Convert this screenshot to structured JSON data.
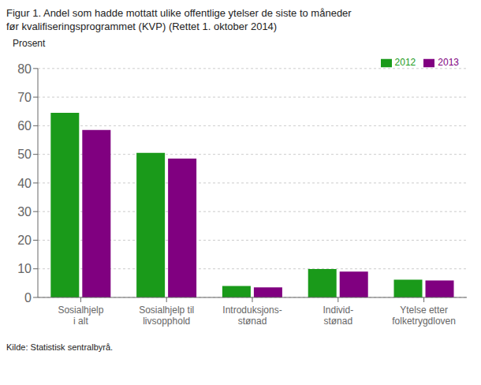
{
  "chart_data": {
    "type": "bar",
    "title": "Figur 1. Andel som hadde mottatt ulike offentlige ytelser de siste to måneder",
    "subtitle": "før kvalifiseringsprogrammet (KVP) (Rettet 1. oktober 2014)",
    "ylabel": "Prosent",
    "annotations": [
      "Kilde: Statistisk sentralbyrå."
    ],
    "categories": [
      "Sosialhjelp\ni alt",
      "Sosialhjelp til\nlivsopphold",
      "Introduksjons-\nstønad",
      "Individ-\nstønad",
      "Ytelse etter\nfolketrygdloven"
    ],
    "series": [
      {
        "name": "2012",
        "color": "#1a9a1a",
        "values": [
          64.5,
          50.5,
          4.0,
          9.9,
          6.2
        ]
      },
      {
        "name": "2013",
        "color": "#800080",
        "values": [
          58.5,
          48.5,
          3.5,
          9.0,
          5.9
        ]
      }
    ],
    "ylim": [
      0,
      80
    ],
    "yticks": [
      0,
      10,
      20,
      30,
      40,
      50,
      60,
      70,
      80
    ],
    "grid": true,
    "legend": "upper right"
  }
}
